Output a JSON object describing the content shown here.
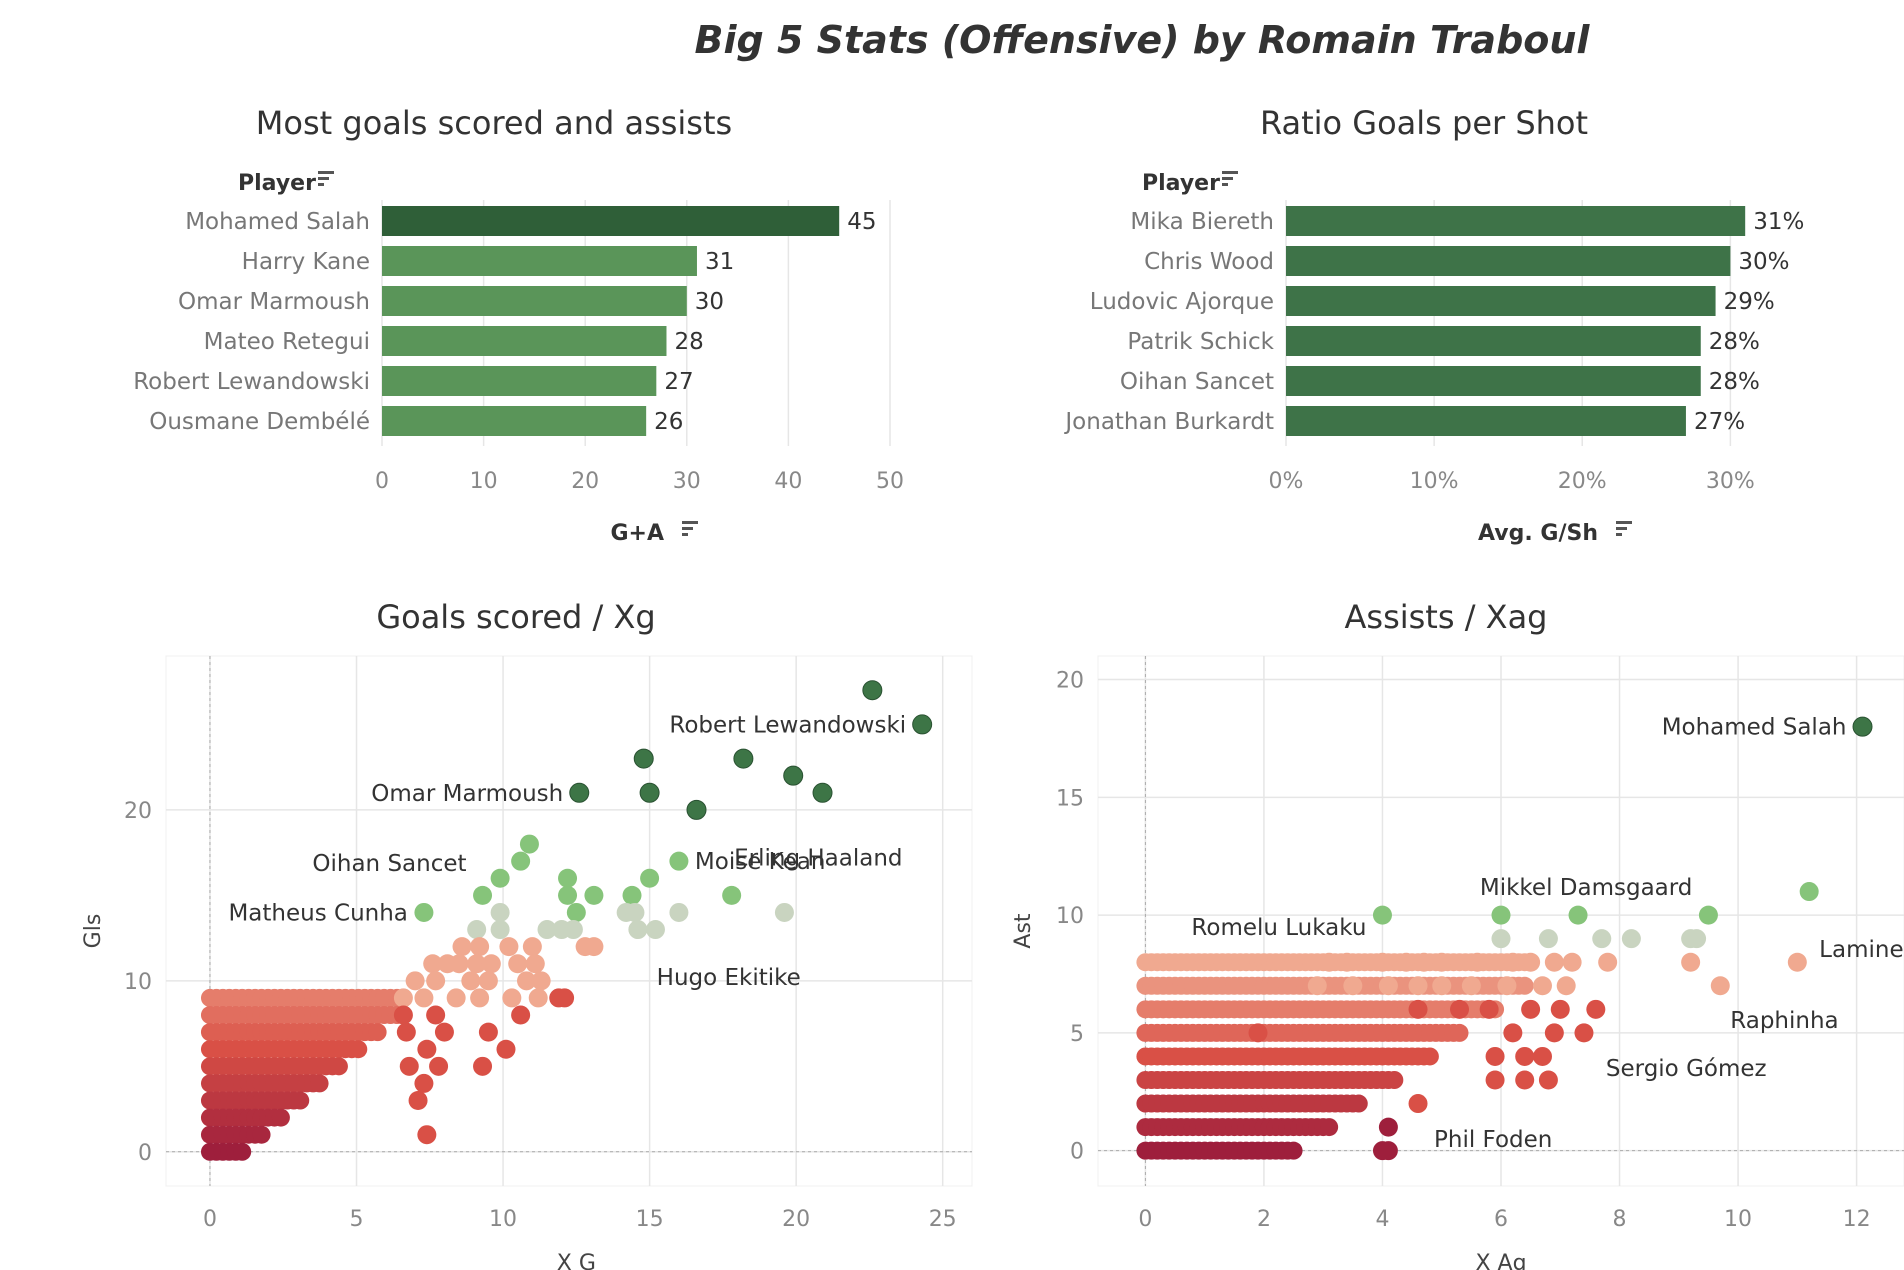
{
  "title": "Big 5 Stats (Offensive) by Romain Traboul",
  "colors": {
    "bar_dark": "#3e7348",
    "bar_top": "#2f5f38",
    "bar_light": "#5a9559",
    "dot_dark": "#3d7546",
    "dot_green": "#86c47a",
    "dot_gray": "#c9d4c0",
    "dot_peach": "#f0a990",
    "dot_red": "#d95046",
    "dot_maroon": "#9e1f3c",
    "grid": "#e6e6e6",
    "axis_text": "#888888"
  },
  "chart_data": [
    {
      "type": "bar",
      "title": "Most goals scored and assists",
      "category_header": "Player",
      "xlabel": "G+A",
      "categories": [
        "Mohamed Salah",
        "Harry Kane",
        "Omar Marmoush",
        "Mateo Retegui",
        "Robert Lewandowski",
        "Ousmane Dembélé"
      ],
      "values": [
        45,
        31,
        30,
        28,
        27,
        26
      ],
      "value_labels": [
        "45",
        "31",
        "30",
        "28",
        "27",
        "26"
      ],
      "xlim": [
        0,
        50
      ],
      "xticks": [
        0,
        10,
        20,
        30,
        40,
        50
      ],
      "xtick_labels": [
        "0",
        "10",
        "20",
        "30",
        "40",
        "50"
      ]
    },
    {
      "type": "bar",
      "title": "Ratio Goals per Shot",
      "category_header": "Player",
      "xlabel": "Avg. G/Sh",
      "categories": [
        "Mika Biereth",
        "Chris Wood",
        "Ludovic Ajorque",
        "Patrik Schick",
        "Oihan Sancet",
        "Jonathan Burkardt"
      ],
      "values": [
        0.31,
        0.3,
        0.29,
        0.28,
        0.28,
        0.27
      ],
      "value_labels": [
        "31%",
        "30%",
        "29%",
        "28%",
        "28%",
        "27%"
      ],
      "xlim": [
        0,
        0.32
      ],
      "xticks": [
        0,
        0.1,
        0.2,
        0.3
      ],
      "xtick_labels": [
        "0%",
        "10%",
        "20%",
        "30%"
      ]
    },
    {
      "type": "scatter",
      "title": "Goals scored / Xg",
      "xlabel": "X G",
      "ylabel": "Gls",
      "xlim": [
        -1.5,
        26
      ],
      "ylim": [
        -2,
        29
      ],
      "xticks": [
        0,
        5,
        10,
        15,
        20,
        25
      ],
      "xtick_labels": [
        "0",
        "5",
        "10",
        "15",
        "20",
        "25"
      ],
      "yticks": [
        0,
        10,
        20
      ],
      "ytick_labels": [
        "0",
        "10",
        "20"
      ],
      "annotations": [
        {
          "text": "Robert Lewandowski",
          "x": 24.3,
          "y": 25
        },
        {
          "text": "Omar Marmoush",
          "x": 12.6,
          "y": 21
        },
        {
          "text": "Erling Haaland",
          "x": 20.9,
          "y": 19.1
        },
        {
          "text": "Oihan Sancet",
          "x": 9.3,
          "y": 16.9
        },
        {
          "text": "Moise Kean",
          "x": 16.0,
          "y": 17.0
        },
        {
          "text": "Matheus Cunha",
          "x": 7.3,
          "y": 14.0
        },
        {
          "text": "Hugo Ekitike",
          "x": 17.7,
          "y": 12.2
        }
      ],
      "points": [
        [
          22.6,
          27,
          "dark"
        ],
        [
          24.3,
          25,
          "dark"
        ],
        [
          14.8,
          23,
          "dark"
        ],
        [
          18.2,
          23,
          "dark"
        ],
        [
          12.6,
          21,
          "dark"
        ],
        [
          15.0,
          21,
          "dark"
        ],
        [
          19.9,
          22,
          "dark"
        ],
        [
          20.9,
          21,
          "dark"
        ],
        [
          16.6,
          20,
          "dark"
        ],
        [
          10.9,
          18,
          "green"
        ],
        [
          10.6,
          17,
          "green"
        ],
        [
          9.9,
          16,
          "green"
        ],
        [
          12.2,
          16,
          "green"
        ],
        [
          16.0,
          17,
          "green"
        ],
        [
          15.0,
          16,
          "green"
        ],
        [
          9.3,
          15,
          "green"
        ],
        [
          12.2,
          15,
          "green"
        ],
        [
          13.1,
          15,
          "green"
        ],
        [
          14.4,
          15,
          "green"
        ],
        [
          17.8,
          15,
          "green"
        ],
        [
          7.3,
          14,
          "green"
        ],
        [
          12.5,
          14,
          "green"
        ],
        [
          14.2,
          14,
          "gray"
        ],
        [
          14.5,
          14,
          "gray"
        ],
        [
          16.0,
          14,
          "gray"
        ],
        [
          19.6,
          14,
          "gray"
        ],
        [
          9.9,
          14,
          "gray"
        ],
        [
          9.1,
          13,
          "gray"
        ],
        [
          9.9,
          13,
          "gray"
        ],
        [
          11.5,
          13,
          "gray"
        ],
        [
          12.0,
          13,
          "gray"
        ],
        [
          12.4,
          13,
          "gray"
        ],
        [
          14.6,
          13,
          "gray"
        ],
        [
          15.2,
          13,
          "gray"
        ],
        [
          13.1,
          12,
          "peach"
        ],
        [
          12.8,
          12,
          "peach"
        ],
        [
          8.6,
          12,
          "peach"
        ],
        [
          9.2,
          12,
          "peach"
        ],
        [
          10.2,
          12,
          "peach"
        ],
        [
          11.0,
          12,
          "peach"
        ],
        [
          7.6,
          11,
          "peach"
        ],
        [
          8.1,
          11,
          "peach"
        ],
        [
          8.5,
          11,
          "peach"
        ],
        [
          9.1,
          11,
          "peach"
        ],
        [
          9.6,
          11,
          "peach"
        ],
        [
          10.5,
          11,
          "peach"
        ],
        [
          11.1,
          11,
          "peach"
        ],
        [
          7.0,
          10,
          "peach"
        ],
        [
          7.7,
          10,
          "peach"
        ],
        [
          8.9,
          10,
          "peach"
        ],
        [
          9.5,
          10,
          "peach"
        ],
        [
          10.8,
          10,
          "peach"
        ],
        [
          11.3,
          10,
          "peach"
        ],
        [
          6.6,
          9,
          "peach"
        ],
        [
          7.3,
          9,
          "peach"
        ],
        [
          8.4,
          9,
          "peach"
        ],
        [
          9.2,
          9,
          "peach"
        ],
        [
          10.3,
          9,
          "peach"
        ],
        [
          11.2,
          9,
          "peach"
        ],
        [
          11.9,
          9,
          "red"
        ],
        [
          12.1,
          9,
          "red"
        ],
        [
          10.6,
          8,
          "red"
        ],
        [
          9.5,
          7,
          "red"
        ],
        [
          10.1,
          6,
          "red"
        ],
        [
          9.3,
          5,
          "red"
        ],
        [
          7.4,
          1,
          "red"
        ],
        [
          7.1,
          3,
          "red"
        ],
        [
          7.3,
          4,
          "red"
        ],
        [
          6.8,
          5,
          "red"
        ],
        [
          7.8,
          5,
          "red"
        ],
        [
          7.4,
          6,
          "red"
        ],
        [
          8.0,
          7,
          "red"
        ],
        [
          6.7,
          7,
          "red"
        ],
        [
          7.7,
          8,
          "red"
        ],
        [
          6.6,
          8,
          "red"
        ]
      ]
    },
    {
      "type": "scatter",
      "title": "Assists / Xag",
      "xlabel": "X Ag",
      "ylabel": "Ast",
      "xlim": [
        -0.8,
        12.8
      ],
      "ylim": [
        -1.5,
        21
      ],
      "xticks": [
        0,
        2,
        4,
        6,
        8,
        10,
        12
      ],
      "xtick_labels": [
        "0",
        "2",
        "4",
        "6",
        "8",
        "10",
        "12"
      ],
      "yticks": [
        0,
        5,
        10,
        15,
        20
      ],
      "ytick_labels": [
        "0",
        "5",
        "10",
        "15",
        "20"
      ],
      "annotations": [
        {
          "text": "Mohamed Salah",
          "x": 12.1,
          "y": 18
        },
        {
          "text": "Mikkel Damsgaard",
          "x": 9.5,
          "y": 11.2
        },
        {
          "text": "Lamine Yamal",
          "x": 11.2,
          "y": 10
        },
        {
          "text": "Romelu Lukaku",
          "x": 4.0,
          "y": 9.5
        },
        {
          "text": "Raphinha",
          "x": 9.7,
          "y": 7
        },
        {
          "text": "Sergio Gómez",
          "x": 7.5,
          "y": 3.5
        },
        {
          "text": "Phil Foden",
          "x": 4.6,
          "y": 0.5
        }
      ],
      "points": [
        [
          12.1,
          18,
          "dark"
        ],
        [
          11.2,
          11,
          "green"
        ],
        [
          9.5,
          10,
          "green"
        ],
        [
          7.3,
          10,
          "green"
        ],
        [
          6.0,
          10,
          "green"
        ],
        [
          4.0,
          10,
          "green"
        ],
        [
          6.0,
          9,
          "gray"
        ],
        [
          6.8,
          9,
          "gray"
        ],
        [
          7.7,
          9,
          "gray"
        ],
        [
          8.2,
          9,
          "gray"
        ],
        [
          9.2,
          9,
          "gray"
        ],
        [
          9.3,
          9,
          "gray"
        ],
        [
          11.0,
          8,
          "peach"
        ],
        [
          9.2,
          8,
          "peach"
        ],
        [
          7.8,
          8,
          "peach"
        ],
        [
          9.7,
          7,
          "peach"
        ],
        [
          3.1,
          8,
          "peach"
        ],
        [
          3.4,
          8,
          "peach"
        ],
        [
          4.0,
          8,
          "peach"
        ],
        [
          4.4,
          8,
          "peach"
        ],
        [
          4.7,
          8,
          "peach"
        ],
        [
          5.0,
          8,
          "peach"
        ],
        [
          5.6,
          8,
          "peach"
        ],
        [
          6.2,
          8,
          "peach"
        ],
        [
          6.5,
          8,
          "peach"
        ],
        [
          6.9,
          8,
          "peach"
        ],
        [
          7.2,
          8,
          "peach"
        ],
        [
          2.9,
          7,
          "peach"
        ],
        [
          3.5,
          7,
          "peach"
        ],
        [
          4.1,
          7,
          "peach"
        ],
        [
          4.6,
          7,
          "peach"
        ],
        [
          5.0,
          7,
          "peach"
        ],
        [
          5.5,
          7,
          "peach"
        ],
        [
          6.1,
          7,
          "peach"
        ],
        [
          6.7,
          7,
          "peach"
        ],
        [
          7.1,
          7,
          "peach"
        ],
        [
          7.6,
          6,
          "red"
        ],
        [
          7.0,
          6,
          "red"
        ],
        [
          6.5,
          6,
          "red"
        ],
        [
          5.8,
          6,
          "red"
        ],
        [
          5.3,
          6,
          "red"
        ],
        [
          4.6,
          6,
          "red"
        ],
        [
          7.4,
          5,
          "red"
        ],
        [
          6.9,
          5,
          "red"
        ],
        [
          6.2,
          5,
          "red"
        ],
        [
          1.9,
          5,
          "red"
        ],
        [
          6.7,
          4,
          "red"
        ],
        [
          6.4,
          4,
          "red"
        ],
        [
          5.9,
          4,
          "red"
        ],
        [
          6.8,
          3,
          "red"
        ],
        [
          6.4,
          3,
          "red"
        ],
        [
          5.9,
          3,
          "red"
        ],
        [
          4.6,
          2,
          "red"
        ],
        [
          4.0,
          0,
          "maroon"
        ],
        [
          4.1,
          1,
          "maroon"
        ],
        [
          4.1,
          0,
          "maroon"
        ]
      ]
    }
  ]
}
